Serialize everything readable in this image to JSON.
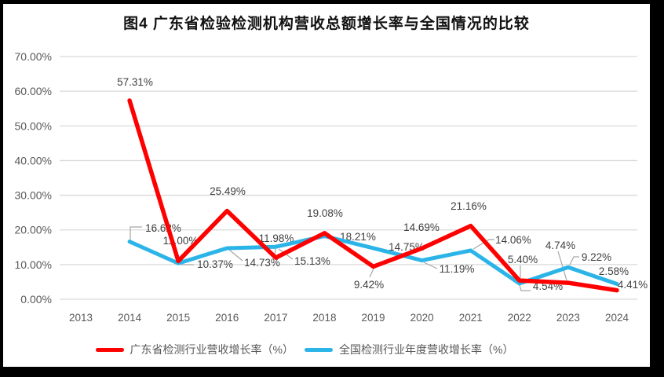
{
  "chart_data": {
    "type": "line",
    "title": "图4  广东省检验检测机构营收总额增长率与全国情况的比较",
    "categories": [
      "2013",
      "2014",
      "2015",
      "2016",
      "2017",
      "2018",
      "2019",
      "2020",
      "2021",
      "2022",
      "2023",
      "2024"
    ],
    "xlabel": "",
    "ylabel": "",
    "ylim": [
      0,
      70
    ],
    "ytick_labels": [
      "0.00%",
      "10.00%",
      "20.00%",
      "30.00%",
      "40.00%",
      "50.00%",
      "60.00%",
      "70.00%"
    ],
    "grid": true,
    "legend_position": "bottom",
    "data_labels": true,
    "series": [
      {
        "name": "广东省检测行业营收增长率（%）",
        "color": "#FF0000",
        "values": [
          null,
          57.31,
          11.0,
          25.49,
          11.98,
          19.08,
          9.42,
          14.69,
          21.16,
          5.4,
          4.74,
          2.58
        ]
      },
      {
        "name": "全国检测行业年度营收增长率（%）",
        "color": "#2BB4E8",
        "values": [
          null,
          16.62,
          10.37,
          14.73,
          15.13,
          18.21,
          14.75,
          11.19,
          14.06,
          4.54,
          9.22,
          4.41
        ]
      }
    ]
  },
  "colors": {
    "gridline": "#D9D9D9",
    "axis_text": "#595959",
    "data_label_text": "#404040",
    "leader_line": "#A6A6A6",
    "frame": "#000000",
    "background": "#FFFFFF"
  }
}
